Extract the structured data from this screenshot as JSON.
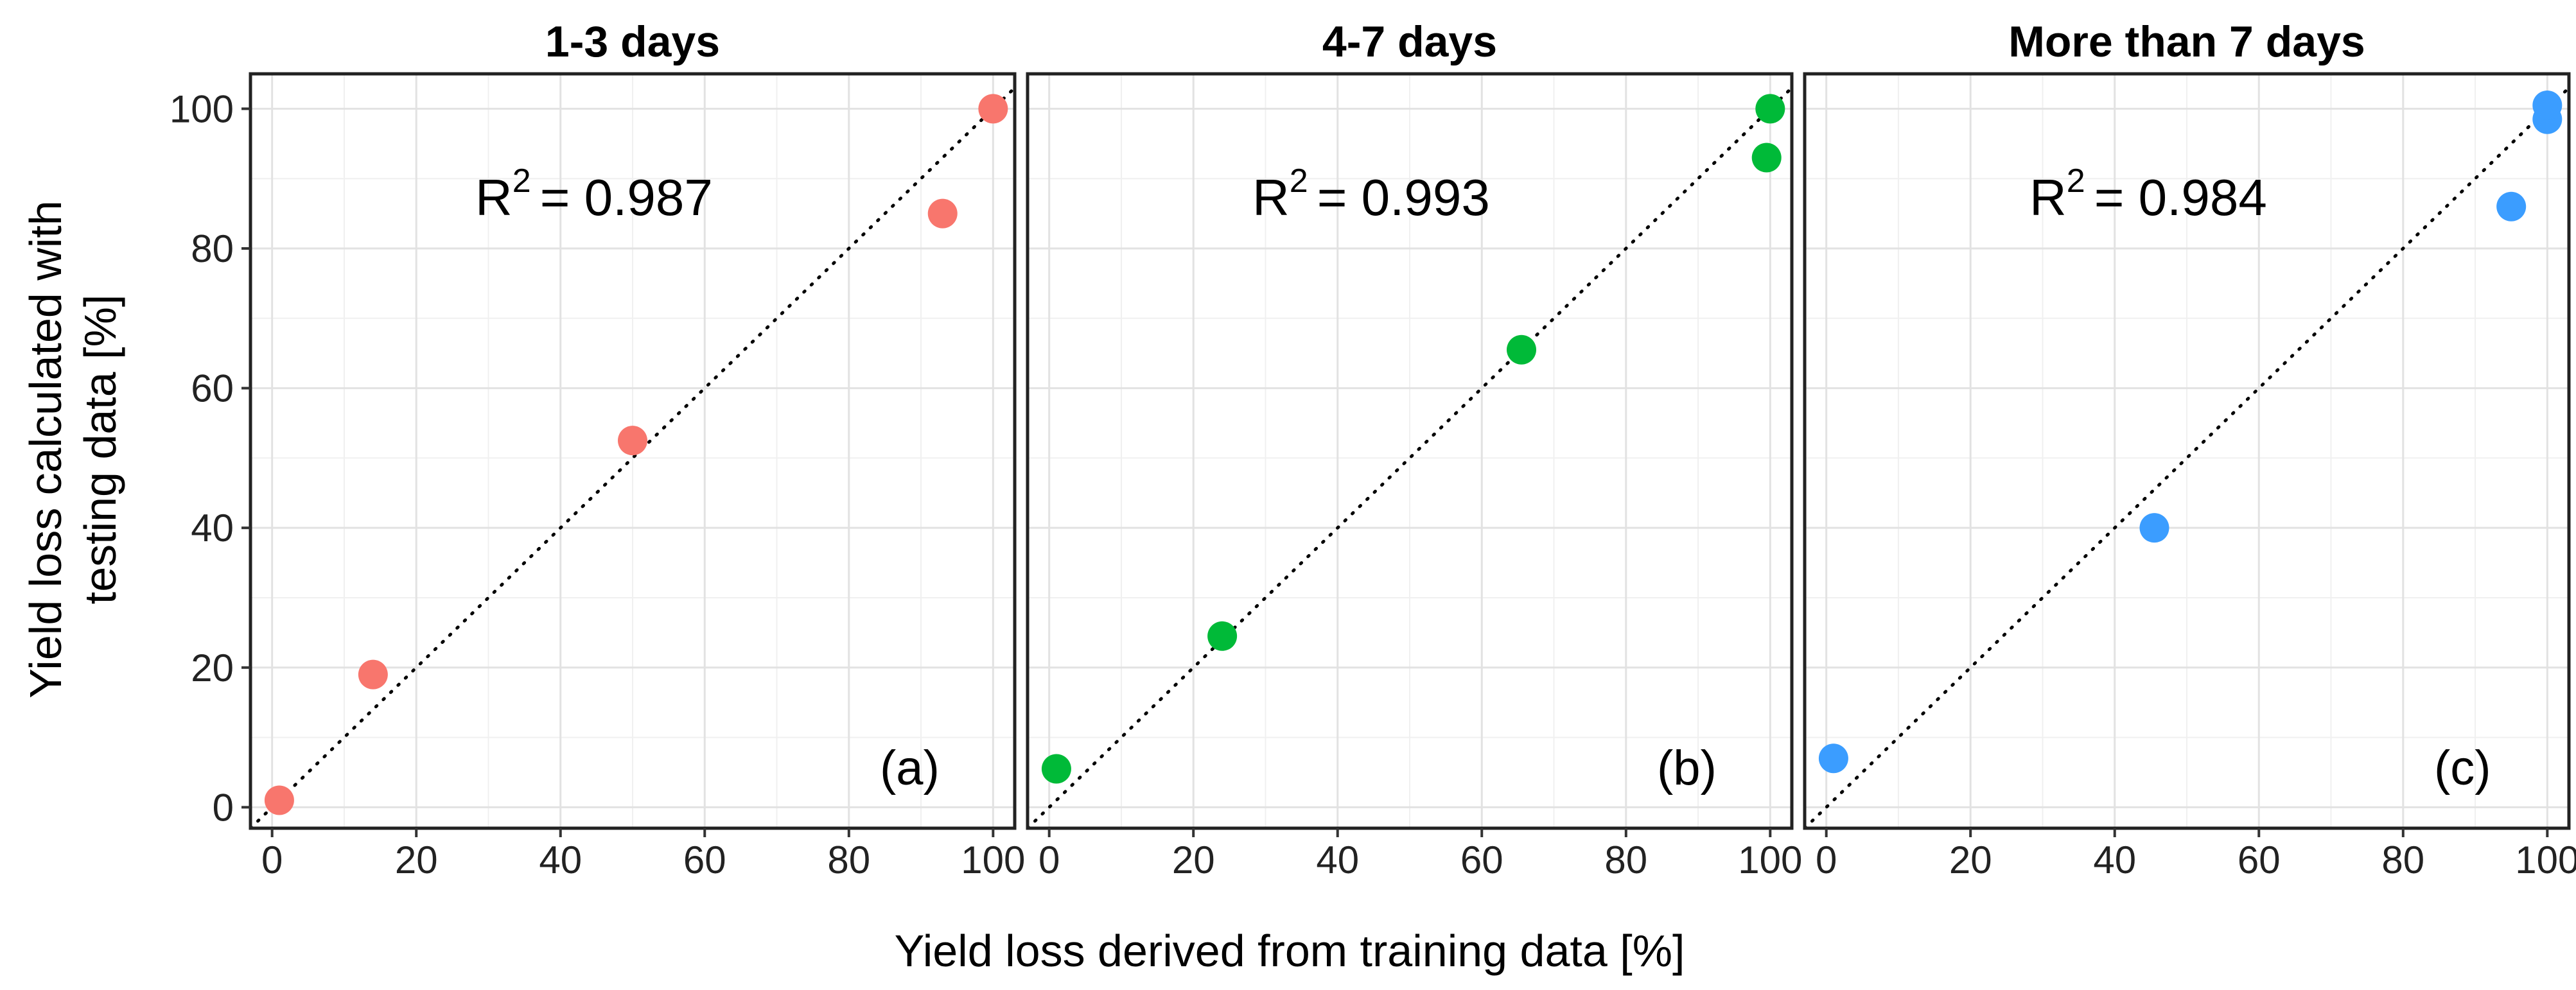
{
  "figure": {
    "xlabel": "Yield loss derived from training data [%]",
    "ylabel_line1": "Yield loss calculated with",
    "ylabel_line2": "testing data [%]"
  },
  "chart_data": [
    {
      "type": "scatter",
      "title": "1-3 days",
      "panel_label": "(a)",
      "r2_label": "R",
      "r2_exponent": "2",
      "r2_value": "= 0.987",
      "color": "#f8766d",
      "xlim": [
        -3,
        103
      ],
      "ylim": [
        -3,
        105
      ],
      "xticks": [
        0,
        20,
        40,
        60,
        80,
        100
      ],
      "yticks": [
        0,
        20,
        40,
        60,
        80,
        100
      ],
      "grid": true,
      "reference_line": "y = x",
      "points": [
        {
          "x": 1,
          "y": 1
        },
        {
          "x": 14,
          "y": 19
        },
        {
          "x": 50,
          "y": 52.5
        },
        {
          "x": 93,
          "y": 85
        },
        {
          "x": 100,
          "y": 100
        }
      ]
    },
    {
      "type": "scatter",
      "title": "4-7 days",
      "panel_label": "(b)",
      "r2_label": "R",
      "r2_exponent": "2",
      "r2_value": "= 0.993",
      "color": "#00ba38",
      "xlim": [
        -3,
        103
      ],
      "ylim": [
        -3,
        105
      ],
      "xticks": [
        0,
        20,
        40,
        60,
        80,
        100
      ],
      "yticks": [
        0,
        20,
        40,
        60,
        80,
        100
      ],
      "grid": true,
      "reference_line": "y = x",
      "points": [
        {
          "x": 1,
          "y": 5.5
        },
        {
          "x": 24,
          "y": 24.5
        },
        {
          "x": 65.5,
          "y": 65.5
        },
        {
          "x": 99.5,
          "y": 93
        },
        {
          "x": 100,
          "y": 100
        }
      ]
    },
    {
      "type": "scatter",
      "title": "More than 7 days",
      "panel_label": "(c)",
      "r2_label": "R",
      "r2_exponent": "2",
      "r2_value": "= 0.984",
      "color": "#3b9dff",
      "xlim": [
        -3,
        103
      ],
      "ylim": [
        -3,
        105
      ],
      "xticks": [
        0,
        20,
        40,
        60,
        80,
        100
      ],
      "yticks": [
        0,
        20,
        40,
        60,
        80,
        100
      ],
      "grid": true,
      "reference_line": "y = x",
      "points": [
        {
          "x": 1,
          "y": 7
        },
        {
          "x": 45.5,
          "y": 40
        },
        {
          "x": 95,
          "y": 86
        },
        {
          "x": 100,
          "y": 98.5
        },
        {
          "x": 100,
          "y": 100.5
        }
      ]
    }
  ]
}
